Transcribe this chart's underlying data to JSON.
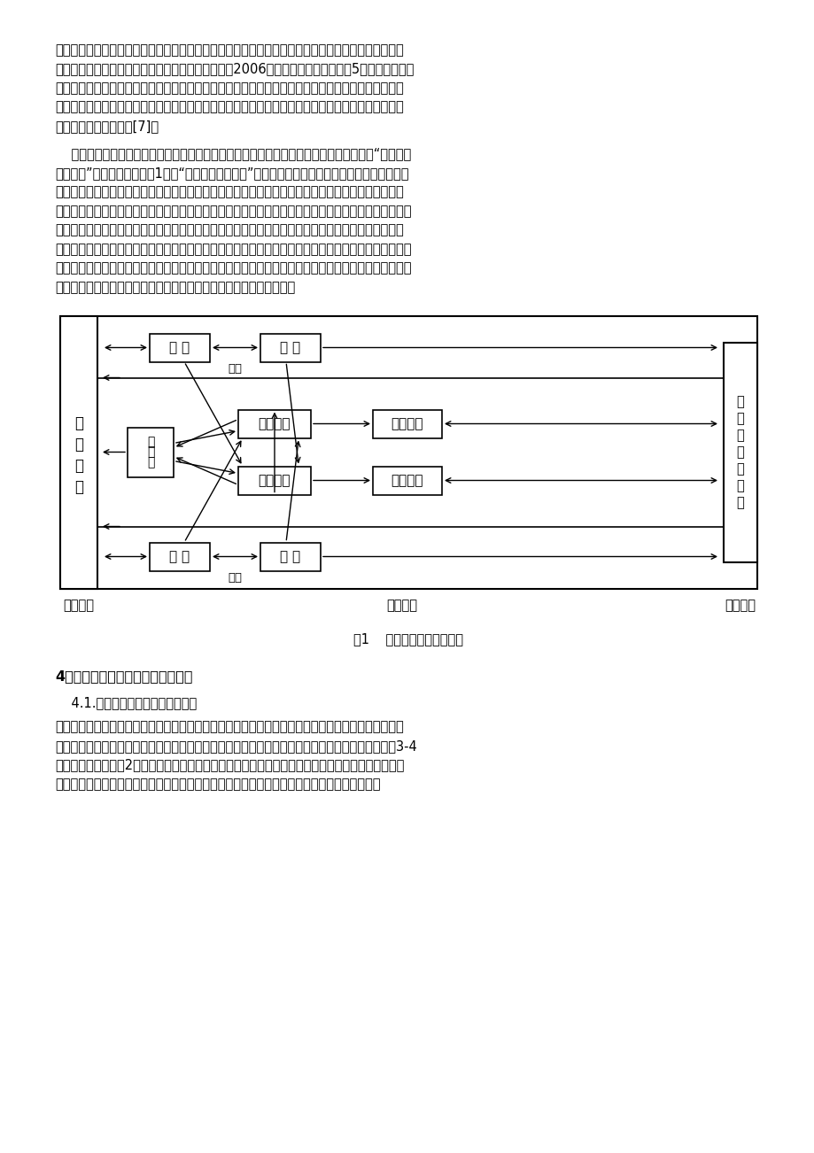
{
  "page_bg": "#ffffff",
  "para1_lines": [
    "境等自主开发校本课程体系，在国家体育教学大纲不变的条件下，充分开发学校资源，改善教学环境，",
    "改变教学模式，提高教学质量，提高学生健康质量。2006年教育部体育卫生艺术处5号文件《教育部",
    "国家体育总局关于进一步加强学校体育工作，切实提高学生健康素质的意见》中规定：要大力提高学校",
    "的体育教育工作，把学校体育作为全面健身的重点，并明确开展学生体育社团，加强体育社团的建设，",
    "切实提高青少年的健康[7]。"
  ],
  "para2_lines": [
    "    笔者根据教学经验从理论层面上对小学体育教学模式进行改革，以阳光体育为背景，构建“益田小学",
    "体育社团”的教学模式（见图1），“益田小学体育社团”教学模式一共由三部分组成，即：体育教师、",
    "学校学生、社团组织者，首先由社团组织者向学校提出申请，获得批准后在校园里开设不同运动项目的",
    "体育社团，由教学管理部制定社团规章制度，再由学生工作部将体育社团的性质、制度及要求形成銘文，",
    "并在校园里进行宣传。体育教师通过体育课针对不同运动项目的体育社团对学生教授不同的运动项目，",
    "体育教师在所教授的学生中挑选出运动技能优秀的学生作为社团组长，并对广大的学生进行指导和影响，",
    "通过一段时间的学习，体育社团将近期的学习情况进行汇总，并向学校教学管理部及相关部门进行汇报，",
    "学校相关部门再将学生的学习信息反馈给体育教师，如此反复的进行。"
  ],
  "fig_caption": "图1    小学体育社团教学模式",
  "section4": "4．体育社团教学模式的性质及要求",
  "section41": "    4.1.学校体育社团教学模式的性质",
  "para3_lines": [
    "小学体育社团教学模式与社会及高校体育社团的性质存在本质的差异，高校及社会体育社团属于自愿性",
    "参与，而小学体育社团教学模式则属于体育课的一部分。在我校开展的个性化教学中，体育课每周为3-4",
    "学时，我们将其中的2学时作为体育社团教学，剩余学时为传统的体育课教学，所以学生必须参与学校",
    "的体育社团。所以我所构想的体育社团教学模式具有体育课的性质，是学校体育课程的一部分。"
  ]
}
